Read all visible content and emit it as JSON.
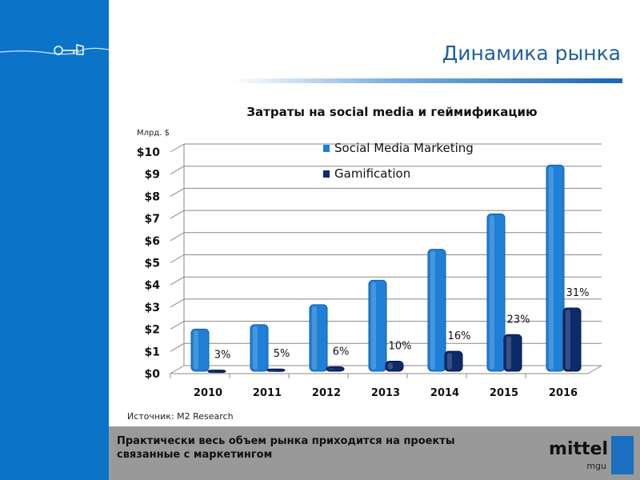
{
  "header": {
    "title": "Динамика рынка"
  },
  "source": "Источник: M2 Research",
  "footer": {
    "text": "Практически весь объем рынка приходится на проекты связанные с маркетингом",
    "logo": "mittel",
    "logo_sub": "mgu"
  },
  "chart_data": {
    "type": "bar",
    "title": "Затраты на social media и геймификацию",
    "ylabel": "Млрд. $",
    "ylim": [
      0,
      10
    ],
    "yticks": [
      "$0",
      "$1",
      "$2",
      "$3",
      "$4",
      "$5",
      "$6",
      "$7",
      "$8",
      "$9",
      "$10"
    ],
    "categories": [
      "2010",
      "2011",
      "2012",
      "2013",
      "2014",
      "2015",
      "2016"
    ],
    "legend_position": "top",
    "grid": true,
    "series": [
      {
        "name": "Social Media Marketing",
        "color": "#1f7fd6",
        "values": [
          1.9,
          2.1,
          3.0,
          4.1,
          5.5,
          7.1,
          9.3
        ]
      },
      {
        "name": "Gamification",
        "color": "#0d2a6b",
        "values": [
          0.05,
          0.1,
          0.2,
          0.45,
          0.9,
          1.65,
          2.85
        ]
      }
    ],
    "data_labels": [
      "3%",
      "5%",
      "6%",
      "10%",
      "16%",
      "23%",
      "31%"
    ]
  }
}
